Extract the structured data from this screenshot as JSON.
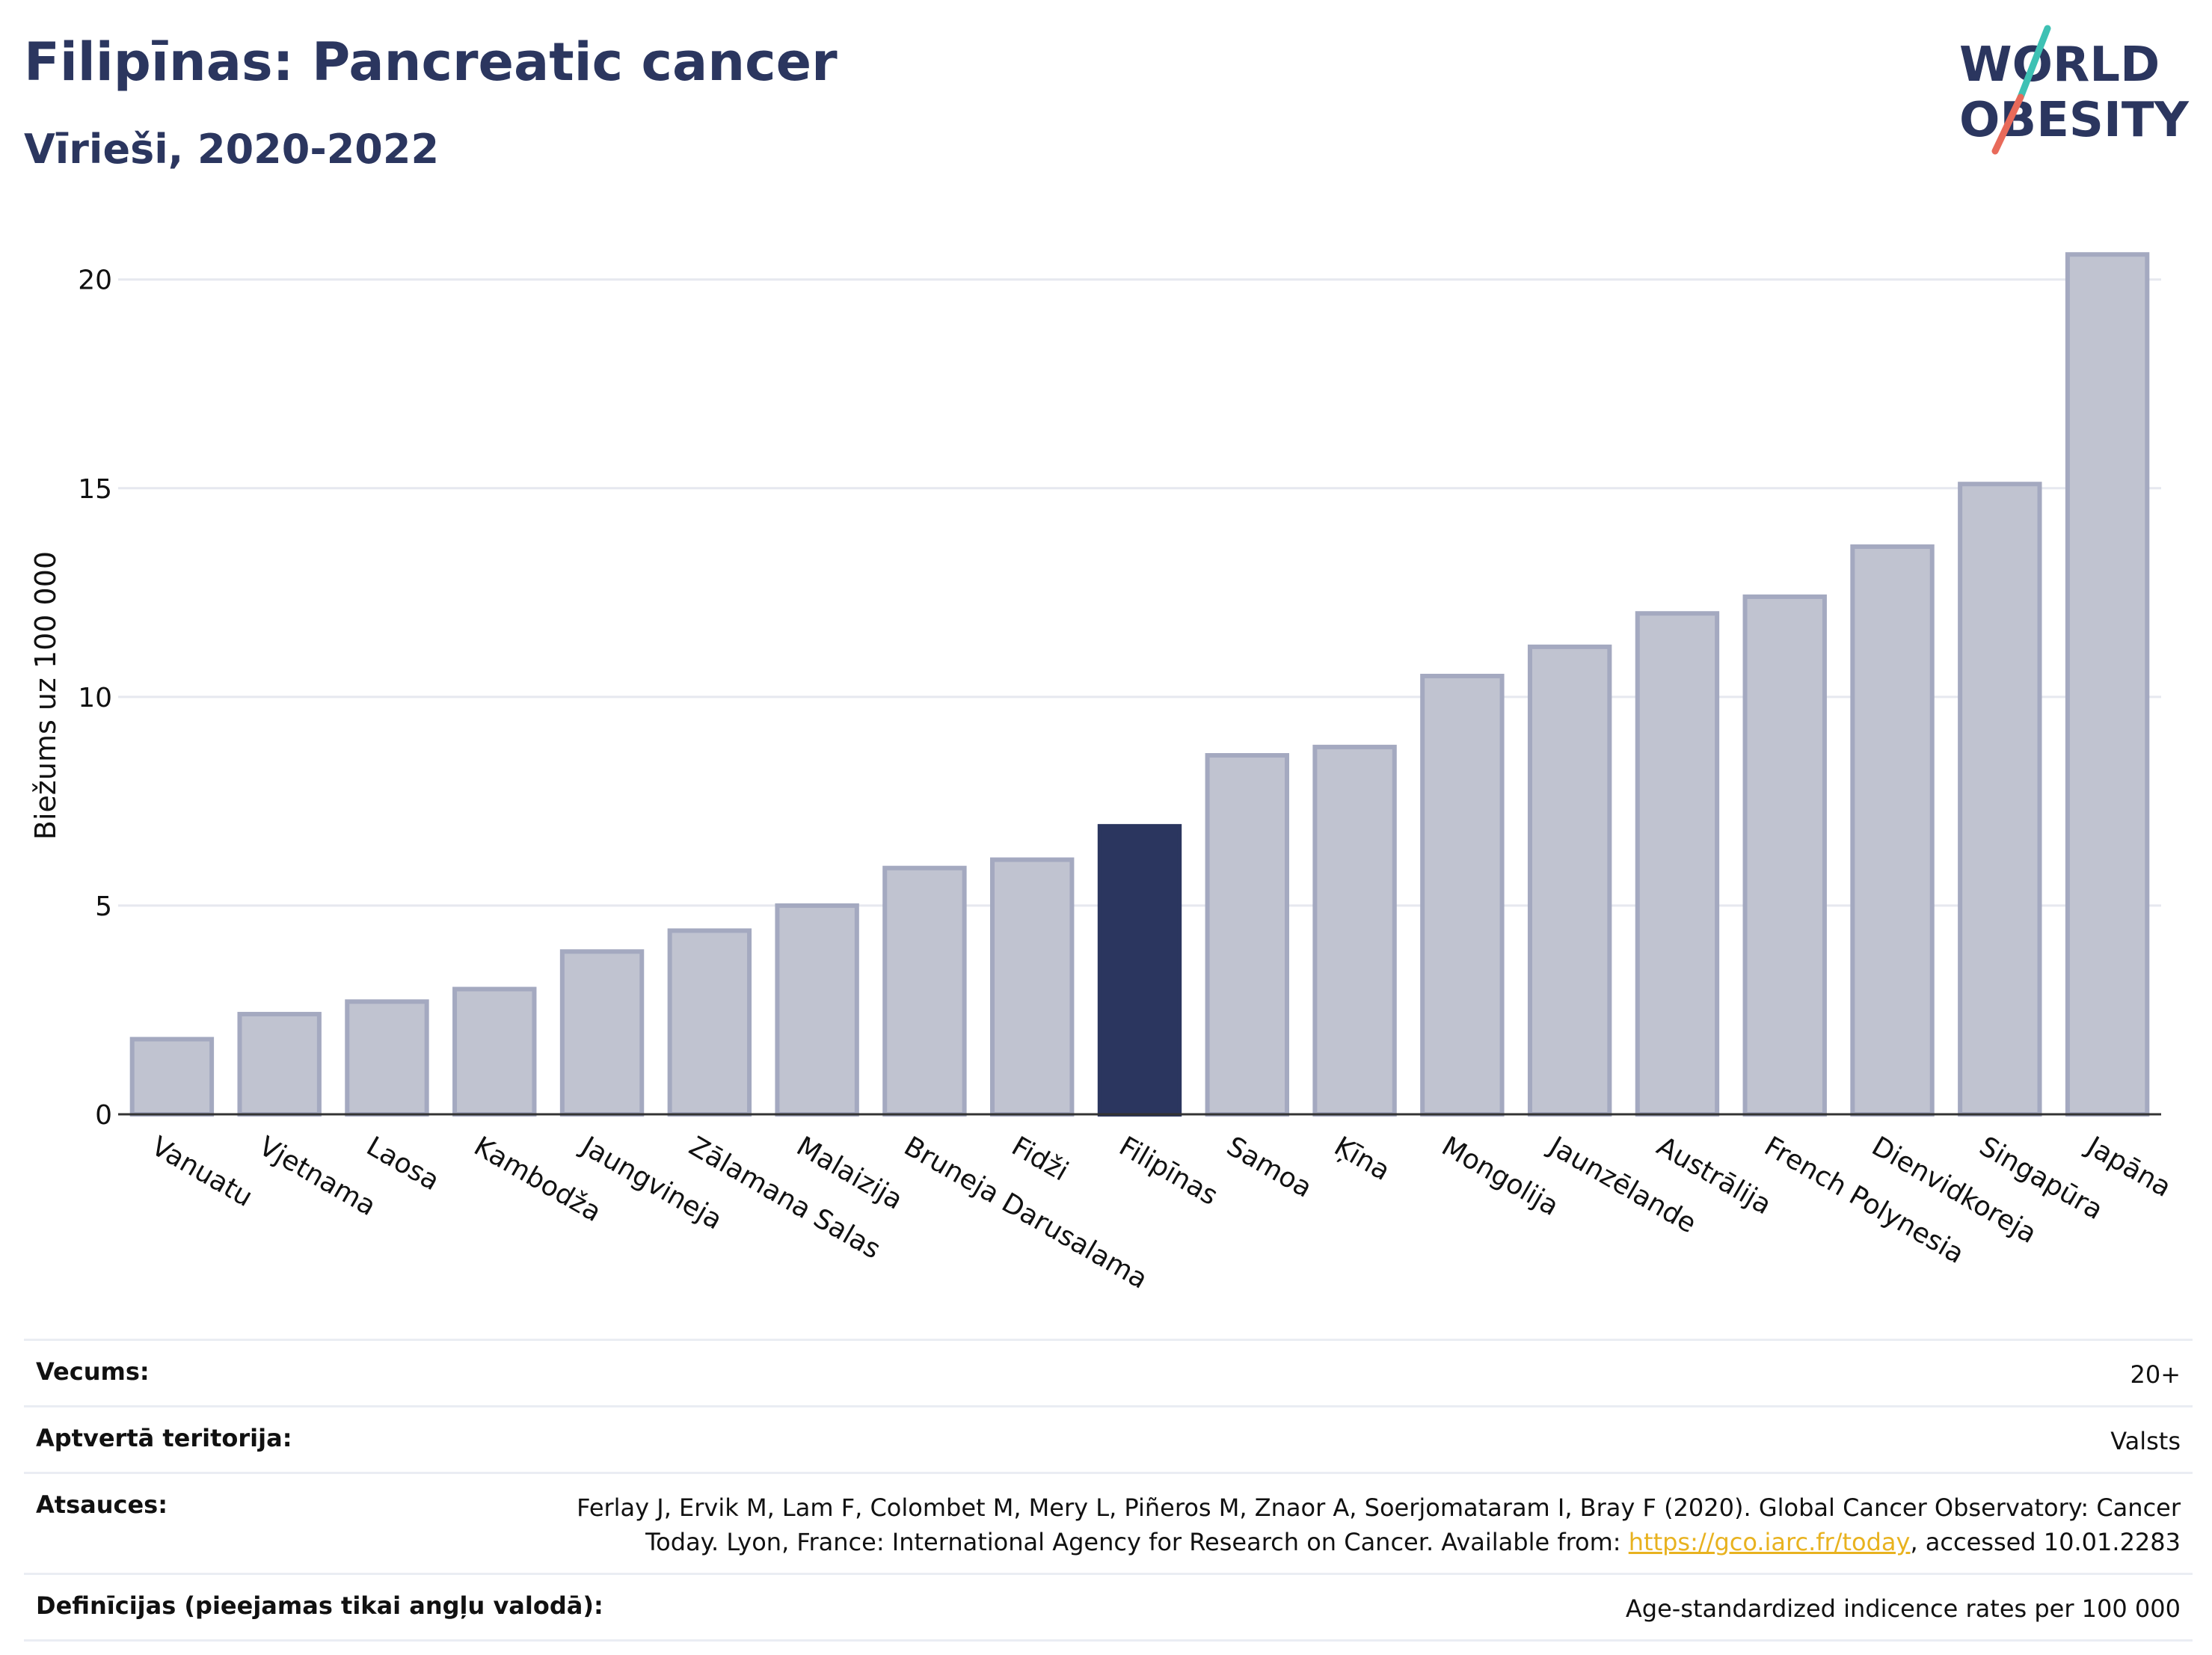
{
  "header": {
    "title": "Filipīnas: Pancreatic cancer",
    "subtitle": "Vīrieši, 2020-2022"
  },
  "logo": {
    "line1": "WORLD",
    "line2": "OBESITY",
    "colors": {
      "text": "#2b365f",
      "slash_top": "#3ec1b4",
      "slash_bottom": "#e86a5a"
    }
  },
  "chart_data": {
    "type": "bar",
    "ylabel": "Biežums uz 100 000",
    "ylim": [
      0,
      21.5
    ],
    "yticks": [
      0,
      5,
      10,
      15,
      20
    ],
    "grid": true,
    "highlight": "Filipīnas",
    "colors": {
      "bar": "#c0c3d0",
      "bar_border": "#a4a9c0",
      "highlight": "#2b365f",
      "grid": "#e6e8ef"
    },
    "categories": [
      "Vanuatu",
      "Vjetnama",
      "Laosa",
      "Kambodža",
      "Jaungvineja",
      "Zālamana Salas",
      "Malaizija",
      "Bruneja Darusalama",
      "Fidži",
      "Filipīnas",
      "Samoa",
      "Ķīna",
      "Mongolija",
      "Jaunzēlande",
      "Austrālija",
      "French Polynesia",
      "Dienvidkoreja",
      "Singapūra",
      "Japāna"
    ],
    "values": [
      1.8,
      2.4,
      2.7,
      3.0,
      3.9,
      4.4,
      5.0,
      5.9,
      6.1,
      6.9,
      8.6,
      8.8,
      10.5,
      11.2,
      12.0,
      12.4,
      13.6,
      15.1,
      20.6
    ]
  },
  "meta": {
    "age_label": "Vecums:",
    "age_value": "20+",
    "coverage_label": "Aptvertā teritorija:",
    "coverage_value": "Valsts",
    "refs_label": "Atsauces:",
    "refs_text_1": "Ferlay J, Ervik M, Lam F, Colombet M, Mery L, Piñeros M, Znaor A, Soerjomataram I, Bray F (2020). Global Cancer Observatory: Cancer Today. Lyon, France: International Agency for Research on Cancer. Available from: ",
    "refs_link": "https://gco.iarc.fr/today",
    "refs_text_2": ", accessed 10.01.2283",
    "definitions_label": "Definīcijas (pieejamas tikai angļu valodā):",
    "definitions_value": "Age-standardized indicence rates per 100 000"
  }
}
